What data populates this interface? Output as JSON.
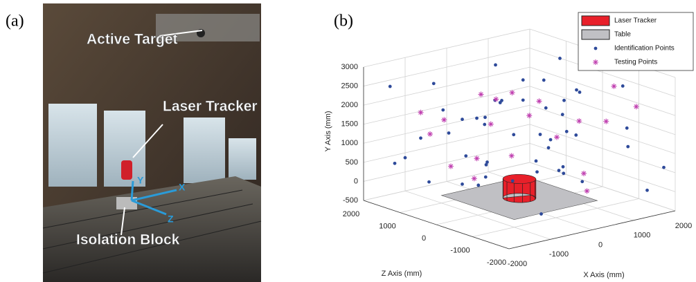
{
  "panels": {
    "a": "(a)",
    "b": "(b)"
  },
  "photo": {
    "labels": [
      "Active Target",
      "Laser Tracker",
      "Isolation Block"
    ],
    "axes": [
      "X",
      "Y",
      "Z"
    ]
  },
  "chart_data": {
    "type": "scatter3d",
    "xlabel": "X Axis (mm)",
    "ylabel": "Y Axis (mm)",
    "zlabel": "Z Axis (mm)",
    "xlim": [
      -2000,
      2000
    ],
    "ylim": [
      -500,
      3000
    ],
    "zlim": [
      -2000,
      2000
    ],
    "xticks": [
      -2000,
      -1000,
      0,
      1000,
      2000
    ],
    "yticks": [
      -500,
      0,
      500,
      1000,
      1500,
      2000,
      2500,
      3000
    ],
    "zticks": [
      -2000,
      -1000,
      0,
      1000,
      2000
    ],
    "grid": true,
    "legend": "upper right",
    "objects": [
      {
        "name": "Laser Tracker",
        "color": "#e8202a",
        "center": [
          0,
          -300,
          0
        ],
        "radius": 300,
        "height": 500
      },
      {
        "name": "Table",
        "color": "#c0c0c4",
        "xrange": [
          -1000,
          1000
        ],
        "zrange": [
          -1000,
          1000
        ],
        "y": -300
      }
    ],
    "series": [
      {
        "name": "Identification Points",
        "color": "#2e4a9a",
        "marker": "dot",
        "x": [
          -1800,
          -1500,
          -1200,
          -900,
          -600,
          -300,
          0,
          300,
          600,
          900,
          1200,
          1500,
          1800,
          -1700,
          -1300,
          -1000,
          -700,
          -400,
          -100,
          200,
          500,
          800,
          1100,
          1400,
          1700,
          -1600,
          -1100,
          -600,
          -200,
          400,
          700,
          1000,
          1300,
          1600,
          -1900,
          -1400,
          -800,
          -500,
          100,
          600,
          1200,
          1900,
          -1200,
          -300,
          500,
          1500,
          -700,
          900,
          0,
          1800
        ],
        "y": [
          2600,
          1200,
          300,
          2100,
          -300,
          1700,
          900,
          2800,
          400,
          1500,
          2300,
          100,
          1900,
          800,
          2900,
          1400,
          -100,
          2200,
          600,
          1300,
          2700,
          -400,
          1800,
          1000,
          2500,
          500,
          2000,
          1100,
          -200,
          1600,
          2400,
          700,
          1200,
          -300,
          1500,
          2200,
          900,
          2600,
          300,
          1900,
          1300,
          600,
          2000,
          1000,
          -350,
          2800,
          1700,
          2100,
          2300,
          400
        ],
        "z": [
          1500,
          -800,
          200,
          -1600,
          1800,
          600,
          -1200,
          1000,
          -400,
          1700,
          -200,
          -1800,
          400,
          1200,
          -1000,
          800,
          -1400,
          1900,
          -600,
          1400,
          -100,
          1100,
          -1700,
          300,
          -900,
          1600,
          -300,
          -1900,
          900,
          -1100,
          700,
          1300,
          -1500,
          100,
          -700,
          500,
          1800,
          -1300,
          1000,
          -500,
          1900,
          -1800,
          200,
          -800,
          1500,
          600,
          -1600,
          -200,
          -100,
          1200
        ]
      },
      {
        "name": "Testing Points",
        "color": "#c040b0",
        "marker": "star",
        "x": [
          -1500,
          -1000,
          -500,
          0,
          500,
          1000,
          1500,
          -1200,
          -600,
          200,
          800,
          1400,
          -1800,
          -300,
          600,
          1700,
          -900,
          300,
          1100,
          -100
        ],
        "y": [
          2000,
          2700,
          1400,
          2400,
          600,
          1800,
          2200,
          1100,
          300,
          1500,
          900,
          2600,
          1700,
          0,
          2100,
          1200,
          2500,
          1900,
          -200,
          800
        ],
        "z": [
          1000,
          -500,
          1500,
          200,
          -1200,
          600,
          -1500,
          -200,
          1200,
          -800,
          1700,
          -1000,
          400,
          900,
          -1700,
          300,
          -1300,
          1400,
          -600,
          100
        ]
      }
    ]
  }
}
